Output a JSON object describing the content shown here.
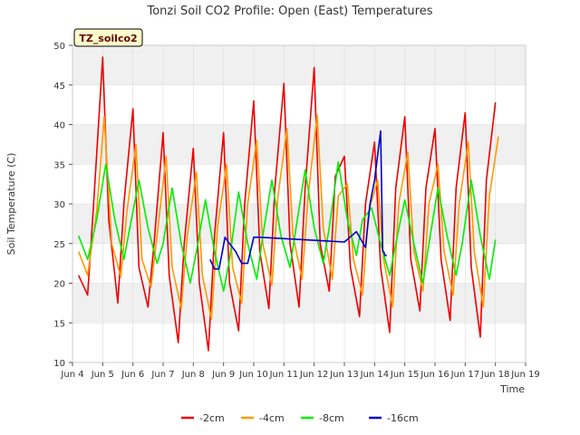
{
  "chart_data": {
    "type": "line",
    "title": "Tonzi Soil CO2 Profile: Open (East) Temperatures",
    "xlabel": "Time",
    "ylabel": "Soil Temperature (C)",
    "badge": "TZ_soilco2",
    "xlim": [
      4.0,
      19.0
    ],
    "ylim": [
      10,
      50
    ],
    "x_ticks": [
      {
        "v": 4,
        "label": "Jun 4"
      },
      {
        "v": 5,
        "label": "Jun 5"
      },
      {
        "v": 6,
        "label": "Jun 6"
      },
      {
        "v": 7,
        "label": "Jun 7"
      },
      {
        "v": 8,
        "label": "Jun 8"
      },
      {
        "v": 9,
        "label": "Jun 9"
      },
      {
        "v": 10,
        "label": "Jun 10"
      },
      {
        "v": 11,
        "label": "Jun 11"
      },
      {
        "v": 12,
        "label": "Jun 12"
      },
      {
        "v": 13,
        "label": "Jun 13"
      },
      {
        "v": 14,
        "label": "Jun 14"
      },
      {
        "v": 15,
        "label": "Jun 15"
      },
      {
        "v": 16,
        "label": "Jun 16"
      },
      {
        "v": 17,
        "label": "Jun 17"
      },
      {
        "v": 18,
        "label": "Jun 18"
      },
      {
        "v": 19,
        "label": "Jun 19"
      }
    ],
    "y_ticks": [
      10,
      15,
      20,
      25,
      30,
      35,
      40,
      45,
      50
    ],
    "grid": true,
    "legend_position": "bottom",
    "series": [
      {
        "name": "-2cm",
        "color": "#ee0000",
        "x": [
          4.2,
          4.5,
          4.7,
          5.0,
          5.2,
          5.5,
          5.7,
          6.0,
          6.2,
          6.5,
          6.7,
          7.0,
          7.2,
          7.5,
          7.7,
          8.0,
          8.2,
          8.5,
          8.7,
          9.0,
          9.2,
          9.5,
          9.7,
          10.0,
          10.2,
          10.5,
          10.7,
          11.0,
          11.2,
          11.5,
          11.7,
          12.0,
          12.2,
          12.5,
          12.7,
          13.0,
          13.2,
          13.5,
          13.7,
          14.0,
          14.2,
          14.5,
          14.7,
          15.0,
          15.2,
          15.5,
          15.7,
          16.0,
          16.2,
          16.5,
          16.7,
          17.0,
          17.2,
          17.5,
          17.7,
          18.0
        ],
        "y": [
          21,
          18.5,
          30,
          48.5,
          28,
          17.5,
          30,
          42,
          22,
          17,
          25,
          39,
          21,
          12.5,
          25,
          37,
          20,
          11.5,
          26,
          39,
          20,
          14,
          30,
          43,
          24,
          16.8,
          32,
          45.2,
          25,
          17,
          32,
          47.2,
          25,
          19,
          33.5,
          36,
          22,
          15.8,
          30,
          37.8,
          22,
          13.8,
          32,
          41,
          23,
          16.5,
          32,
          39.5,
          23,
          15.3,
          32,
          41.5,
          22,
          13.2,
          33,
          42.8
        ]
      },
      {
        "name": "-4cm",
        "color": "#ff9900",
        "x": [
          4.2,
          4.5,
          4.8,
          5.05,
          5.3,
          5.6,
          5.8,
          6.1,
          6.3,
          6.6,
          6.8,
          7.1,
          7.3,
          7.6,
          7.8,
          8.1,
          8.3,
          8.6,
          8.8,
          9.1,
          9.3,
          9.6,
          9.8,
          10.1,
          10.3,
          10.6,
          10.8,
          11.1,
          11.3,
          11.6,
          11.8,
          12.1,
          12.3,
          12.6,
          12.8,
          13.1,
          13.3,
          13.6,
          13.8,
          14.1,
          14.3,
          14.6,
          14.8,
          15.1,
          15.3,
          15.6,
          15.8,
          16.1,
          16.3,
          16.6,
          16.8,
          17.1,
          17.3,
          17.6,
          17.8,
          18.1
        ],
        "y": [
          24,
          21,
          29,
          41,
          25,
          20.8,
          29,
          37.5,
          23,
          19.5,
          26,
          36,
          22,
          16.8,
          26,
          34,
          21,
          15.5,
          27,
          35,
          22,
          17.5,
          30,
          38,
          25,
          19.7,
          31,
          39.5,
          26,
          20.5,
          31,
          41.2,
          27,
          20.5,
          31,
          32.5,
          23,
          18.5,
          29,
          33,
          23,
          17,
          30,
          36.5,
          24,
          19,
          30,
          35,
          24,
          18.5,
          30,
          37.8,
          24,
          17,
          31,
          38.5
        ]
      },
      {
        "name": "-8cm",
        "color": "#00ee00",
        "x": [
          4.2,
          4.5,
          4.8,
          5.1,
          5.4,
          5.7,
          5.9,
          6.2,
          6.5,
          6.8,
          7.0,
          7.3,
          7.6,
          7.9,
          8.1,
          8.4,
          8.7,
          9.0,
          9.2,
          9.5,
          9.8,
          10.1,
          10.3,
          10.6,
          10.9,
          11.2,
          11.4,
          11.7,
          12.0,
          12.3,
          12.5,
          12.8,
          13.1,
          13.4,
          13.6,
          13.9,
          14.2,
          14.5,
          14.7,
          15.0,
          15.3,
          15.6,
          15.8,
          16.1,
          16.4,
          16.7,
          16.9,
          17.2,
          17.5,
          17.8,
          18.0
        ],
        "y": [
          26,
          23,
          28,
          35,
          28,
          23,
          27,
          33,
          27,
          22.5,
          25,
          32,
          25,
          20,
          24,
          30.5,
          24,
          19,
          23,
          31.5,
          25,
          20.5,
          26,
          33,
          26,
          22,
          27,
          34.3,
          27,
          22.5,
          27,
          35.3,
          28,
          23.5,
          28,
          29.5,
          25,
          21,
          25,
          30.5,
          25,
          20,
          25,
          32,
          26,
          21,
          25,
          33,
          26,
          20.5,
          25.5
        ]
      },
      {
        "name": "-16cm",
        "color": "#0000cc",
        "x": [
          8.55,
          8.7,
          8.85,
          9.05,
          9.2,
          9.4,
          9.6,
          9.8,
          10.0,
          10.2,
          12.5,
          13.0,
          13.4,
          13.7,
          13.85,
          14.0,
          14.2,
          14.27,
          14.3,
          14.35,
          14.4
        ],
        "y": [
          23,
          21.8,
          21.8,
          25.8,
          25,
          24,
          22.5,
          22.5,
          25.8,
          25.8,
          25.3,
          25.2,
          26.5,
          24.5,
          30,
          33,
          39.2,
          24,
          24,
          23.5,
          23.5
        ]
      }
    ]
  }
}
